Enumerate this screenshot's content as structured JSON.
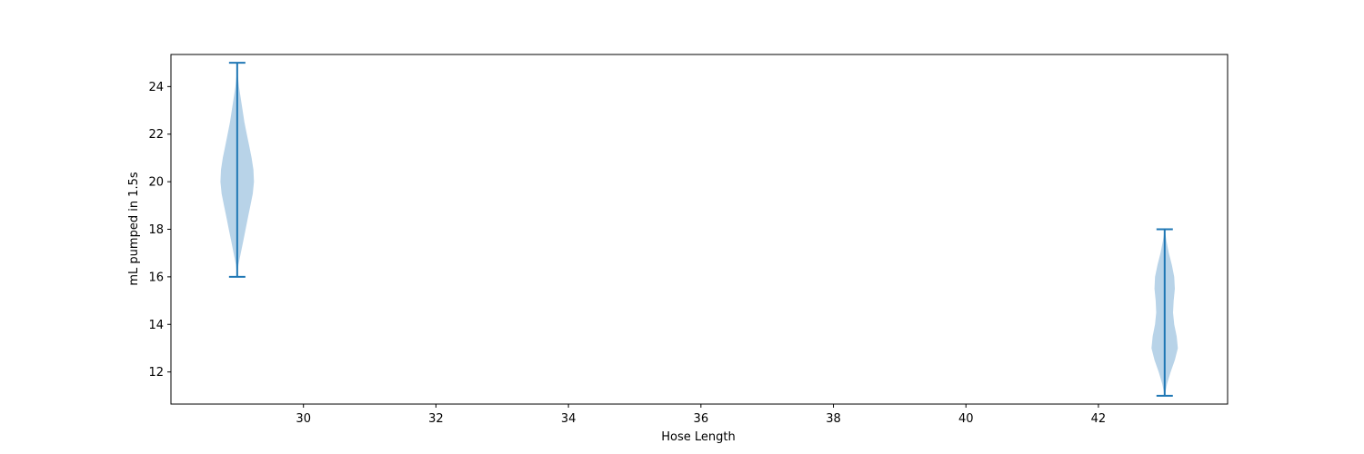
{
  "chart_data": {
    "type": "violin",
    "title": "",
    "xlabel": "Hose Length",
    "ylabel": "mL pumped in 1.5s",
    "xlim": [
      28.0,
      43.95
    ],
    "ylim": [
      10.65,
      25.35
    ],
    "xticks": [
      30,
      32,
      34,
      36,
      38,
      40,
      42
    ],
    "yticks": [
      12,
      14,
      16,
      18,
      20,
      22,
      24
    ],
    "grid": false,
    "colors": {
      "body": "#a6c8e2",
      "line": "#1f77b4"
    },
    "violins": [
      {
        "position": 29,
        "min": 16,
        "max": 25,
        "density": [
          [
            16.0,
            0.0
          ],
          [
            16.5,
            0.02
          ],
          [
            17.0,
            0.06
          ],
          [
            17.5,
            0.1
          ],
          [
            18.0,
            0.14
          ],
          [
            18.5,
            0.18
          ],
          [
            19.0,
            0.22
          ],
          [
            19.5,
            0.26
          ],
          [
            20.0,
            0.28
          ],
          [
            20.5,
            0.27
          ],
          [
            21.0,
            0.24
          ],
          [
            21.5,
            0.2
          ],
          [
            22.0,
            0.16
          ],
          [
            22.5,
            0.12
          ],
          [
            23.0,
            0.09
          ],
          [
            23.5,
            0.06
          ],
          [
            24.0,
            0.03
          ],
          [
            24.5,
            0.01
          ],
          [
            25.0,
            0.0
          ]
        ]
      },
      {
        "position": 43,
        "min": 11,
        "max": 18,
        "density": [
          [
            11.0,
            0.0
          ],
          [
            11.5,
            0.04
          ],
          [
            12.0,
            0.1
          ],
          [
            12.5,
            0.17
          ],
          [
            13.0,
            0.22
          ],
          [
            13.5,
            0.2
          ],
          [
            14.0,
            0.16
          ],
          [
            14.5,
            0.14
          ],
          [
            15.0,
            0.15
          ],
          [
            15.5,
            0.17
          ],
          [
            16.0,
            0.16
          ],
          [
            16.5,
            0.12
          ],
          [
            17.0,
            0.07
          ],
          [
            17.5,
            0.03
          ],
          [
            18.0,
            0.0
          ]
        ]
      }
    ]
  }
}
